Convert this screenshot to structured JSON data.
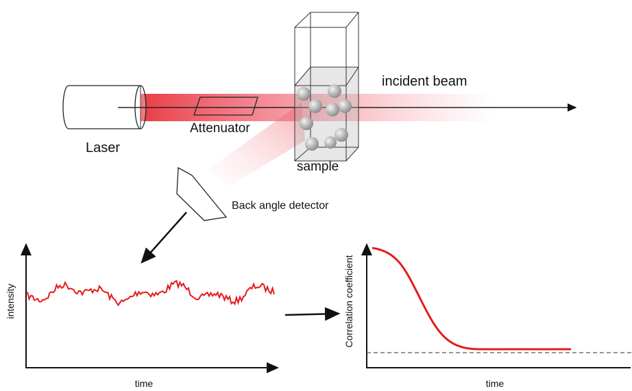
{
  "labels": {
    "laser": "Laser",
    "attenuator": "Attenuator",
    "sample": "sample",
    "beam": "incident beam",
    "detector": "Back angle detector"
  },
  "plots": [
    {
      "y_label": "intensity",
      "x_label": "time"
    },
    {
      "y_label": "Correlation coefficient",
      "x_label": "time"
    }
  ]
}
